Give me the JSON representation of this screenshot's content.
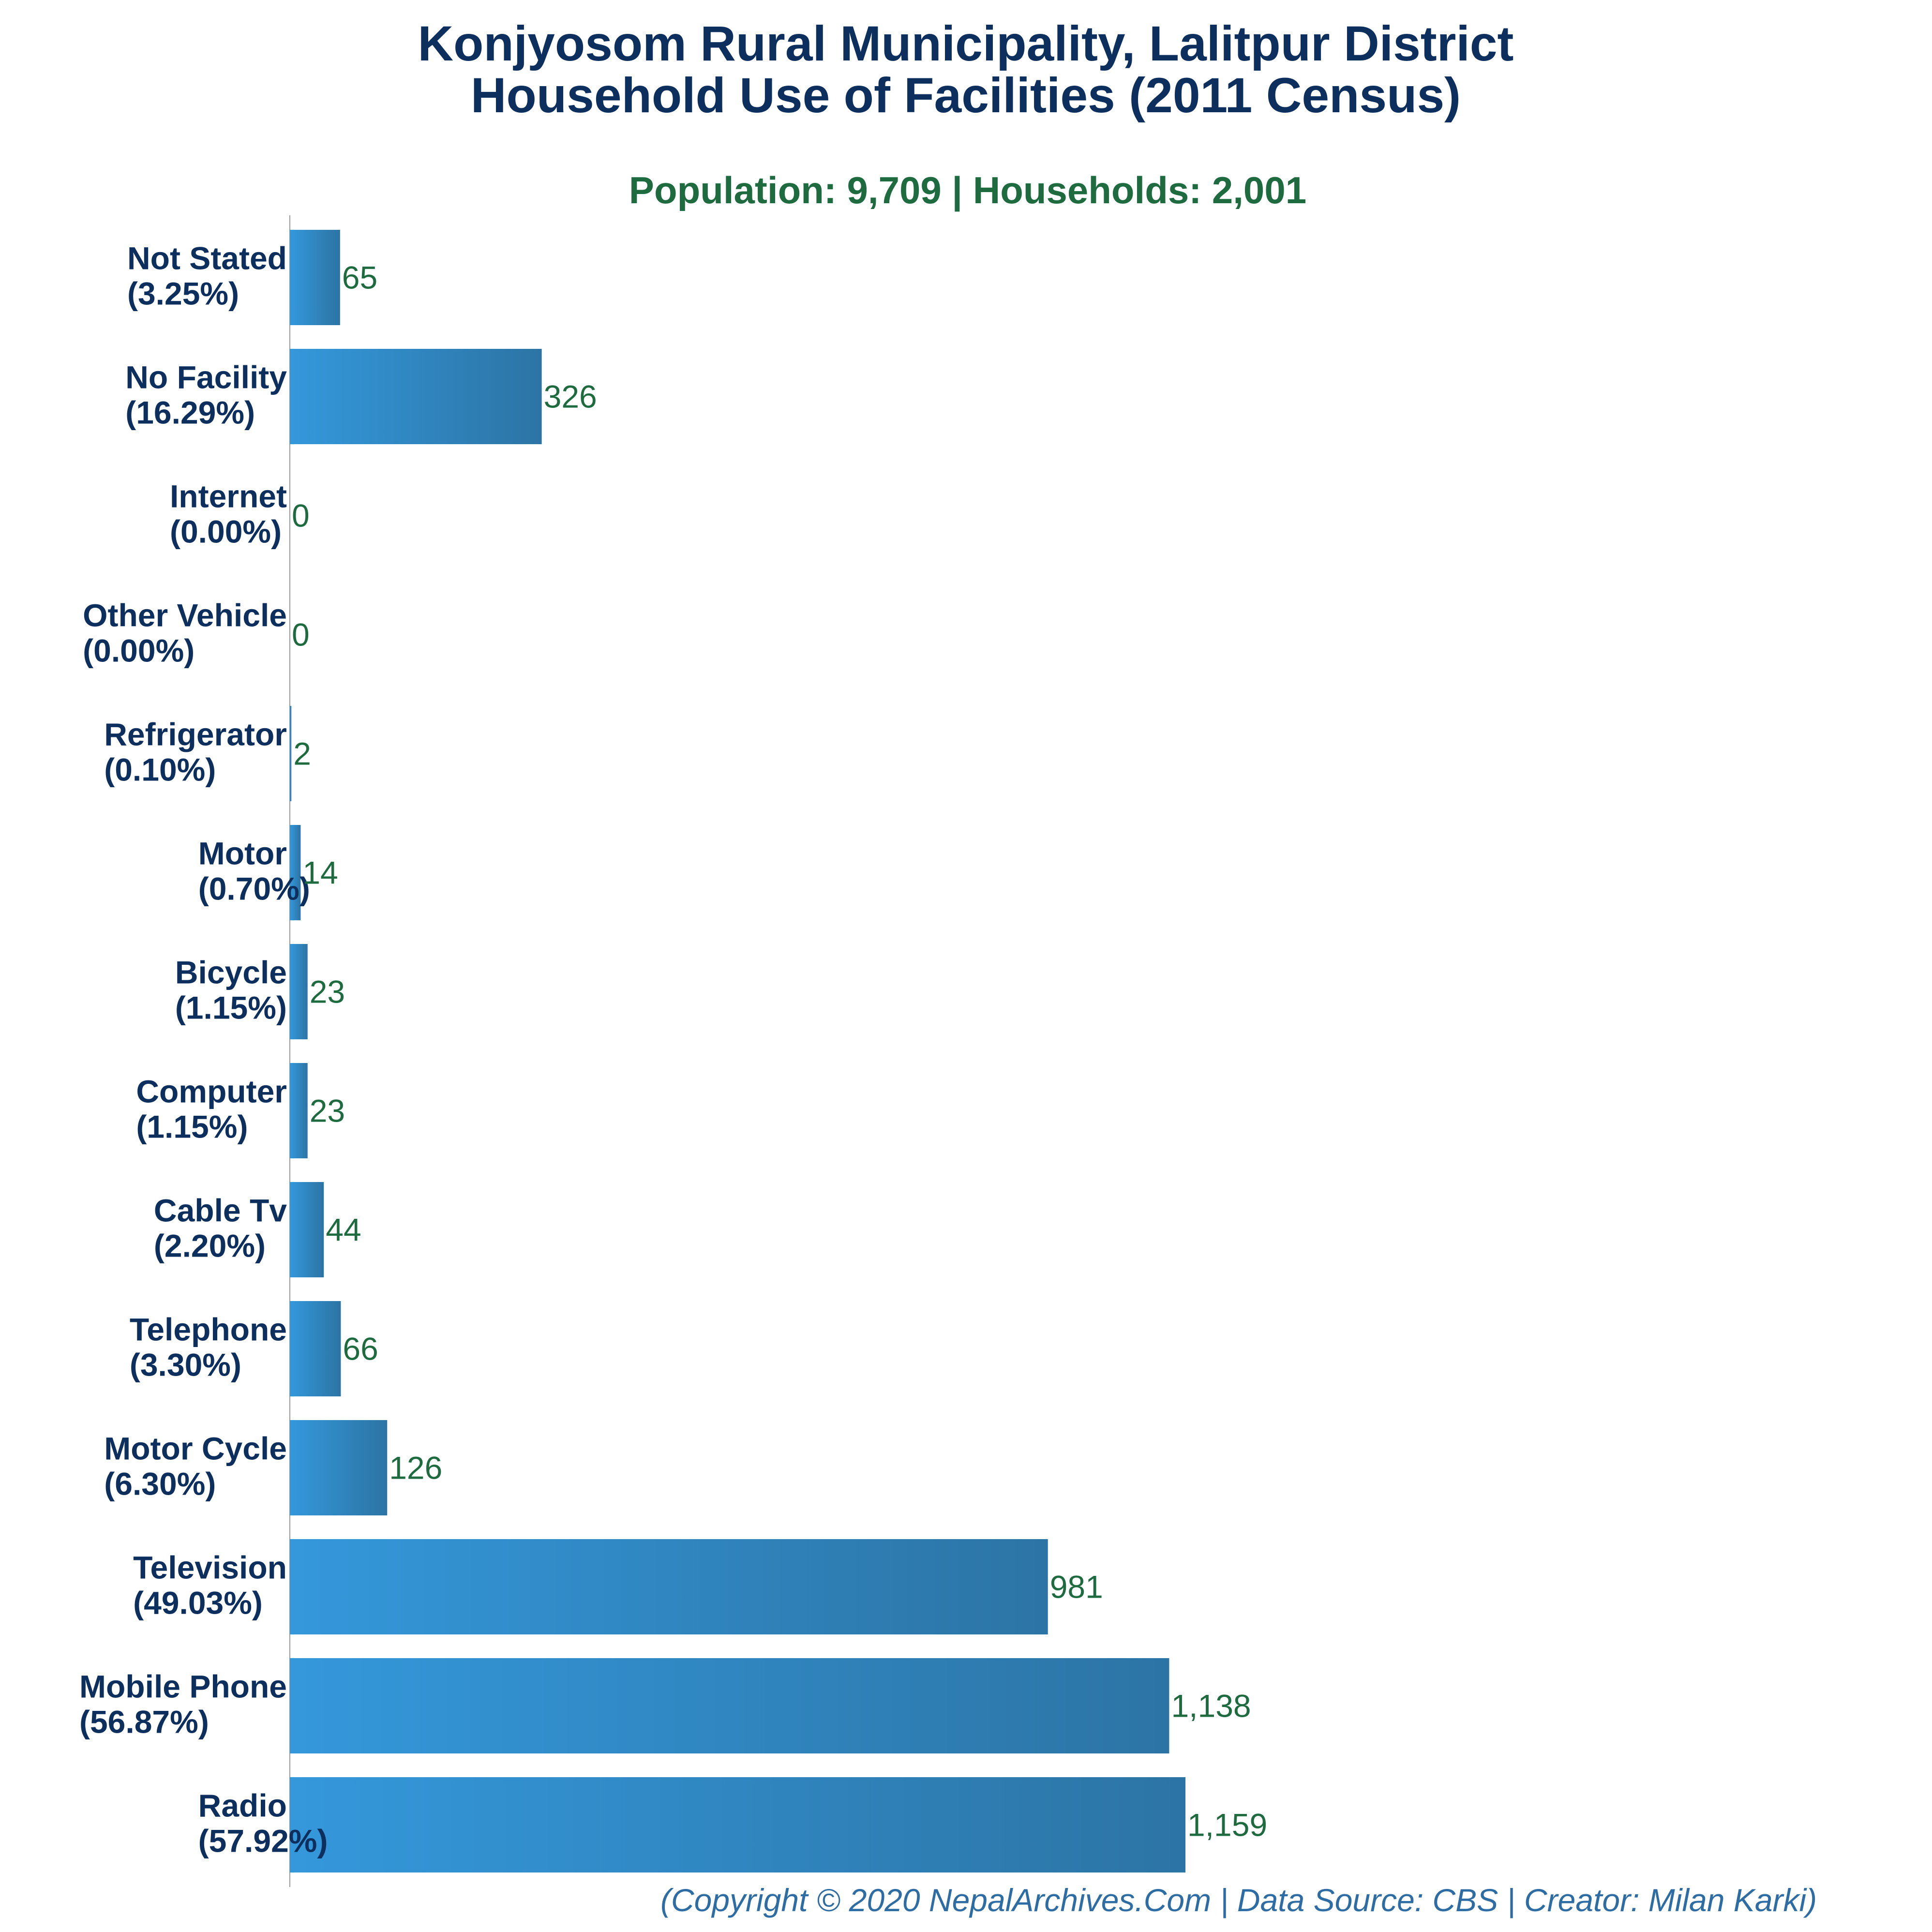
{
  "chart_data": {
    "type": "bar",
    "orientation": "horizontal",
    "title_line1": "Konjyosom Rural Municipality, Lalitpur District",
    "title_line2": "Household Use of Facilities (2011 Census)",
    "subtitle": "Population: 9,709 | Households: 2,001",
    "categories": [
      "Not Stated",
      "No Facility",
      "Internet",
      "Other Vehicle",
      "Refrigerator",
      "Motor",
      "Bicycle",
      "Computer",
      "Cable Tv",
      "Telephone",
      "Motor Cycle",
      "Television",
      "Mobile Phone",
      "Radio"
    ],
    "percent_labels": [
      "(3.25%)",
      "(16.29%)",
      "(0.00%)",
      "(0.00%)",
      "(0.10%)",
      "(0.70%)",
      "(1.15%)",
      "(1.15%)",
      "(2.20%)",
      "(3.30%)",
      "(6.30%)",
      "(49.03%)",
      "(56.87%)",
      "(57.92%)"
    ],
    "values": [
      65,
      326,
      0,
      0,
      2,
      14,
      23,
      23,
      44,
      66,
      126,
      981,
      1138,
      1159
    ],
    "value_labels": [
      "65",
      "326",
      "0",
      "0",
      "2",
      "14",
      "23",
      "23",
      "44",
      "66",
      "126",
      "981",
      "1,138",
      "1,159"
    ],
    "xlim": [
      0,
      1159
    ],
    "grid": false,
    "xlabel": "",
    "ylabel": ""
  },
  "footer": "(Copyright © 2020 NepalArchives.Com | Data Source: CBS | Creator: Milan Karki)",
  "colors": {
    "title": "#0d2f5e",
    "subtitle": "#1e6b3f",
    "category_label": "#0d2f5e",
    "value_label": "#1e6b3f",
    "bar_gradient_start": "#3498db",
    "bar_gradient_end": "#2c74a5",
    "axis": "#999999",
    "footer": "#2e6da4"
  }
}
